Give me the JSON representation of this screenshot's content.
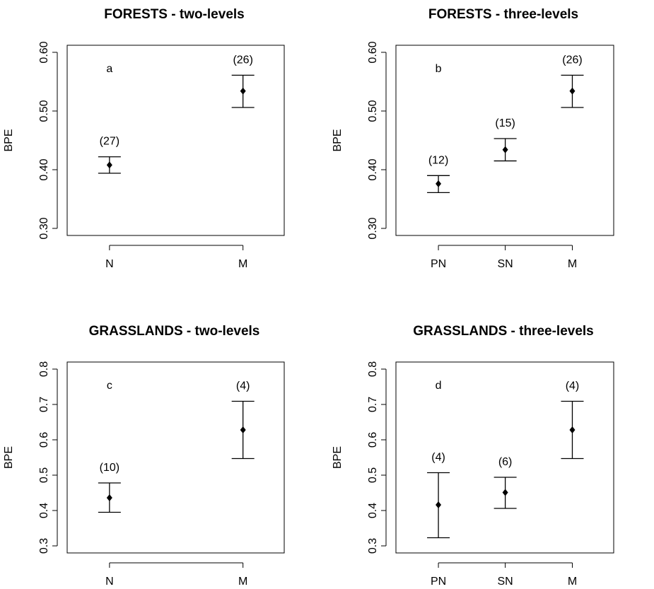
{
  "chart_data": [
    {
      "type": "scatter",
      "title": "FORESTS - two-levels",
      "panel_letter": "a",
      "ylabel": "BPE",
      "xlabel": "",
      "ylim": [
        0.3,
        0.6
      ],
      "yticks": [
        0.3,
        0.4,
        0.5,
        0.6
      ],
      "ytick_labels": [
        "0.30",
        "0.40",
        "0.50",
        "0.60"
      ],
      "categories": [
        "N",
        "M"
      ],
      "points": [
        {
          "category": "N",
          "mean": 0.408,
          "lower": 0.394,
          "upper": 0.422,
          "n_label": "(27)"
        },
        {
          "category": "M",
          "mean": 0.534,
          "lower": 0.506,
          "upper": 0.561,
          "n_label": "(26)"
        }
      ]
    },
    {
      "type": "scatter",
      "title": "FORESTS - three-levels",
      "panel_letter": "b",
      "ylabel": "BPE",
      "xlabel": "",
      "ylim": [
        0.3,
        0.6
      ],
      "yticks": [
        0.3,
        0.4,
        0.5,
        0.6
      ],
      "ytick_labels": [
        "0.30",
        "0.40",
        "0.50",
        "0.60"
      ],
      "categories": [
        "PN",
        "SN",
        "M"
      ],
      "points": [
        {
          "category": "PN",
          "mean": 0.376,
          "lower": 0.361,
          "upper": 0.39,
          "n_label": "(12)"
        },
        {
          "category": "SN",
          "mean": 0.434,
          "lower": 0.415,
          "upper": 0.453,
          "n_label": "(15)"
        },
        {
          "category": "M",
          "mean": 0.534,
          "lower": 0.506,
          "upper": 0.561,
          "n_label": "(26)"
        }
      ]
    },
    {
      "type": "scatter",
      "title": "GRASSLANDS - two-levels",
      "panel_letter": "c",
      "ylabel": "BPE",
      "xlabel": "",
      "ylim": [
        0.3,
        0.8
      ],
      "yticks": [
        0.3,
        0.4,
        0.5,
        0.6,
        0.7,
        0.8
      ],
      "ytick_labels": [
        "0.3",
        "0.4",
        "0.5",
        "0.6",
        "0.7",
        "0.8"
      ],
      "categories": [
        "N",
        "M"
      ],
      "points": [
        {
          "category": "N",
          "mean": 0.436,
          "lower": 0.395,
          "upper": 0.478,
          "n_label": "(10)"
        },
        {
          "category": "M",
          "mean": 0.628,
          "lower": 0.547,
          "upper": 0.709,
          "n_label": "(4)"
        }
      ]
    },
    {
      "type": "scatter",
      "title": "GRASSLANDS - three-levels",
      "panel_letter": "d",
      "ylabel": "BPE",
      "xlabel": "",
      "ylim": [
        0.3,
        0.8
      ],
      "yticks": [
        0.3,
        0.4,
        0.5,
        0.6,
        0.7,
        0.8
      ],
      "ytick_labels": [
        "0.3",
        "0.4",
        "0.5",
        "0.6",
        "0.7",
        "0.8"
      ],
      "categories": [
        "PN",
        "SN",
        "M"
      ],
      "points": [
        {
          "category": "PN",
          "mean": 0.416,
          "lower": 0.323,
          "upper": 0.507,
          "n_label": "(4)"
        },
        {
          "category": "SN",
          "mean": 0.451,
          "lower": 0.406,
          "upper": 0.494,
          "n_label": "(6)"
        },
        {
          "category": "M",
          "mean": 0.628,
          "lower": 0.547,
          "upper": 0.709,
          "n_label": "(4)"
        }
      ]
    }
  ]
}
